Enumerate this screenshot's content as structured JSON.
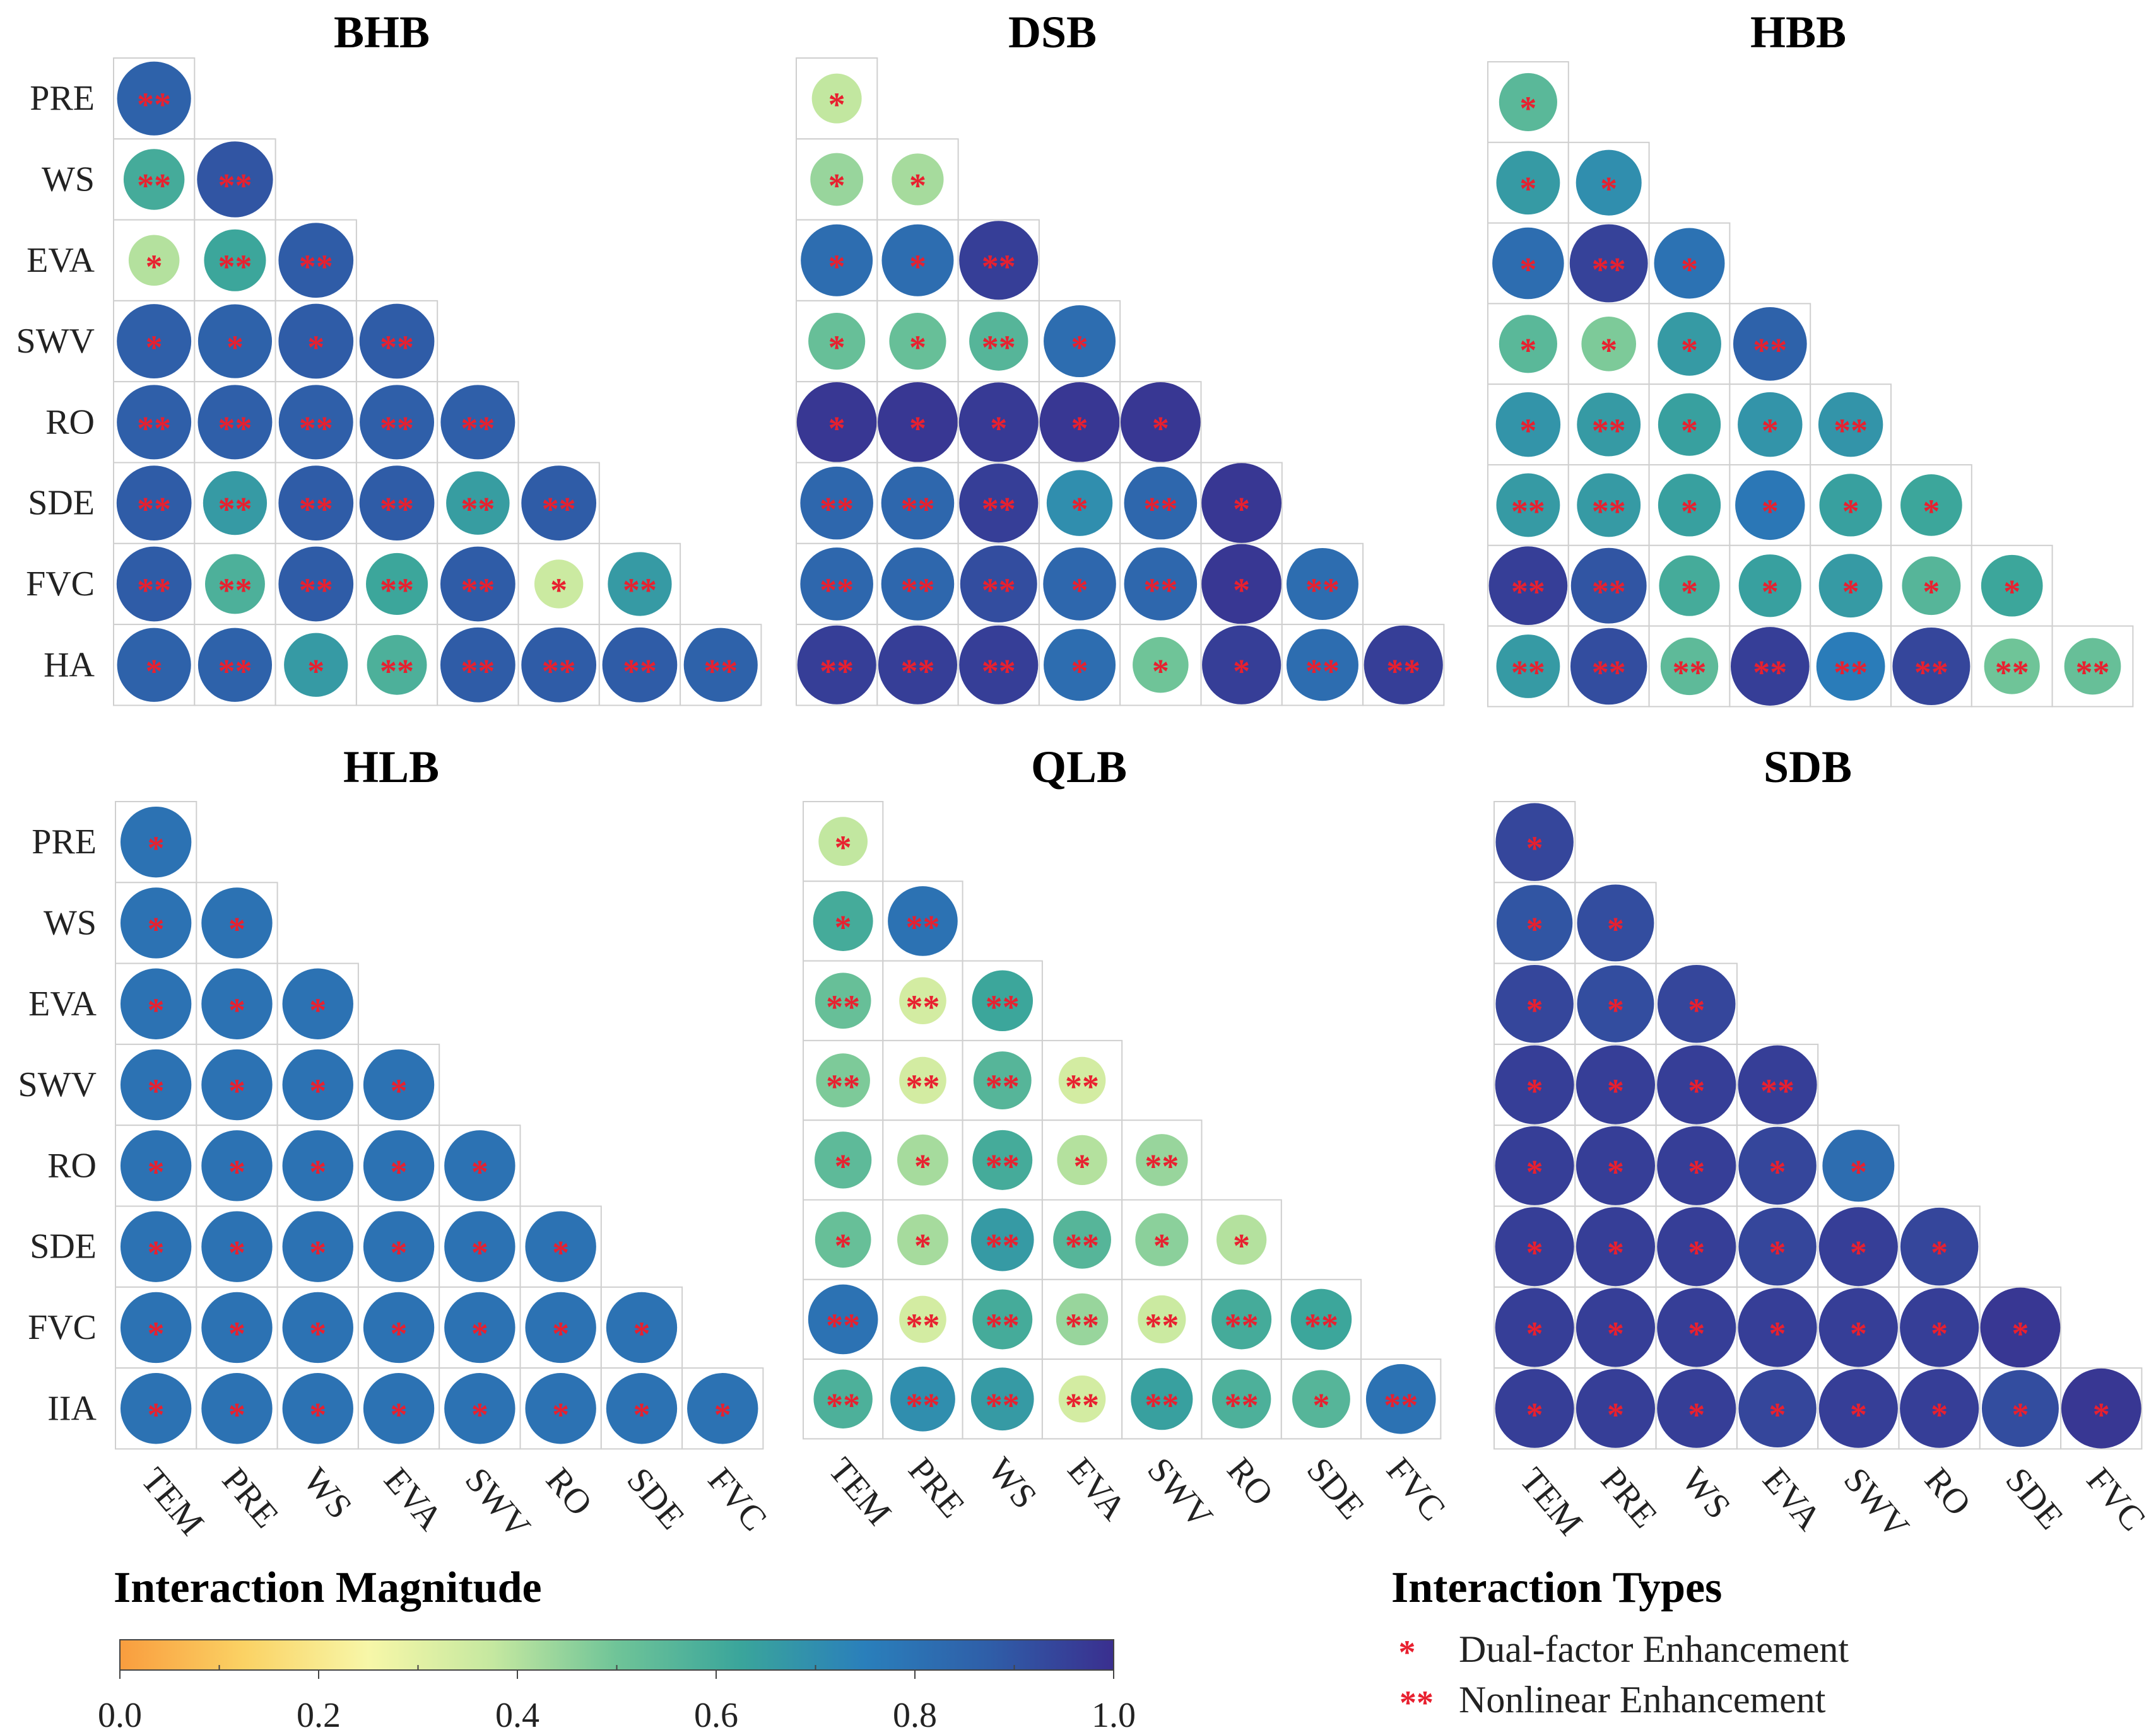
{
  "chart_data": {
    "type": "heatmap",
    "variant": "lower-triangle bubble matrix (6 panels)",
    "row_labels": [
      "PRE",
      "WS",
      "EVA",
      "SWV",
      "RO",
      "SDE",
      "FVC",
      "HA"
    ],
    "col_labels": [
      "TEM",
      "PRE",
      "WS",
      "EVA",
      "SWV",
      "RO",
      "SDE",
      "FVC"
    ],
    "row_labels_by_panel": {
      "HLB": [
        "PRE",
        "WS",
        "EVA",
        "SWV",
        "RO",
        "SDE",
        "FVC",
        "IIA"
      ]
    },
    "panels": [
      {
        "title": "BHB",
        "values": [
          [
            0.86
          ],
          [
            0.6,
            0.9
          ],
          [
            0.4,
            0.62,
            0.88
          ],
          [
            0.87,
            0.86,
            0.88,
            0.88
          ],
          [
            0.87,
            0.87,
            0.87,
            0.87,
            0.87
          ],
          [
            0.88,
            0.66,
            0.88,
            0.88,
            0.65,
            0.88
          ],
          [
            0.88,
            0.58,
            0.88,
            0.62,
            0.88,
            0.36,
            0.66
          ],
          [
            0.86,
            0.86,
            0.66,
            0.58,
            0.88,
            0.88,
            0.88,
            0.86
          ]
        ],
        "types": [
          [
            2
          ],
          [
            2,
            2
          ],
          [
            1,
            2,
            2
          ],
          [
            1,
            1,
            1,
            2
          ],
          [
            2,
            2,
            2,
            2,
            2
          ],
          [
            2,
            2,
            2,
            2,
            2,
            2
          ],
          [
            2,
            2,
            2,
            2,
            2,
            1,
            2
          ],
          [
            1,
            2,
            1,
            2,
            2,
            2,
            2,
            2
          ]
        ]
      },
      {
        "title": "DSB",
        "values": [
          [
            0.38
          ],
          [
            0.44,
            0.42
          ],
          [
            0.82,
            0.82,
            0.96
          ],
          [
            0.52,
            0.52,
            0.56,
            0.82
          ],
          [
            0.98,
            0.98,
            0.97,
            0.98,
            0.98
          ],
          [
            0.84,
            0.84,
            0.96,
            0.7,
            0.84,
            0.98
          ],
          [
            0.84,
            0.84,
            0.92,
            0.84,
            0.84,
            0.98,
            0.82
          ],
          [
            0.96,
            0.96,
            0.96,
            0.82,
            0.5,
            0.96,
            0.82,
            0.96
          ]
        ],
        "types": [
          [
            1
          ],
          [
            1,
            1
          ],
          [
            1,
            1,
            2
          ],
          [
            1,
            1,
            2,
            1
          ],
          [
            1,
            1,
            1,
            1,
            1
          ],
          [
            2,
            2,
            2,
            1,
            2,
            1
          ],
          [
            2,
            2,
            2,
            1,
            2,
            1,
            2
          ],
          [
            2,
            2,
            2,
            1,
            1,
            1,
            2,
            2
          ]
        ]
      },
      {
        "title": "HBB",
        "values": [
          [
            0.55
          ],
          [
            0.66,
            0.7
          ],
          [
            0.82,
            0.95,
            0.8
          ],
          [
            0.55,
            0.48,
            0.66,
            0.86
          ],
          [
            0.68,
            0.66,
            0.64,
            0.68,
            0.68
          ],
          [
            0.66,
            0.66,
            0.64,
            0.78,
            0.64,
            0.62
          ],
          [
            0.96,
            0.9,
            0.6,
            0.64,
            0.66,
            0.56,
            0.62
          ],
          [
            0.66,
            0.92,
            0.54,
            0.96,
            0.76,
            0.94,
            0.5,
            0.52
          ]
        ],
        "types": [
          [
            1
          ],
          [
            1,
            1
          ],
          [
            1,
            2,
            1
          ],
          [
            1,
            1,
            1,
            2
          ],
          [
            1,
            2,
            1,
            1,
            2
          ],
          [
            2,
            2,
            1,
            1,
            1,
            1
          ],
          [
            2,
            2,
            1,
            1,
            1,
            1,
            1
          ],
          [
            2,
            2,
            2,
            2,
            2,
            2,
            2,
            2
          ]
        ]
      },
      {
        "title": "HLB",
        "values": [
          [
            0.8
          ],
          [
            0.8,
            0.8
          ],
          [
            0.8,
            0.8,
            0.8
          ],
          [
            0.8,
            0.8,
            0.8,
            0.8
          ],
          [
            0.8,
            0.8,
            0.8,
            0.8,
            0.8
          ],
          [
            0.8,
            0.8,
            0.8,
            0.8,
            0.8,
            0.8
          ],
          [
            0.8,
            0.8,
            0.8,
            0.8,
            0.8,
            0.8,
            0.8
          ],
          [
            0.8,
            0.8,
            0.8,
            0.8,
            0.8,
            0.8,
            0.8,
            0.8
          ]
        ],
        "types": [
          [
            1
          ],
          [
            1,
            1
          ],
          [
            1,
            1,
            1
          ],
          [
            1,
            1,
            1,
            1
          ],
          [
            1,
            1,
            1,
            1,
            1
          ],
          [
            1,
            1,
            1,
            1,
            1,
            1
          ],
          [
            1,
            1,
            1,
            1,
            1,
            1,
            1
          ],
          [
            1,
            1,
            1,
            1,
            1,
            1,
            1,
            1
          ]
        ]
      },
      {
        "title": "QLB",
        "values": [
          [
            0.38
          ],
          [
            0.6,
            0.8
          ],
          [
            0.52,
            0.34,
            0.62
          ],
          [
            0.48,
            0.34,
            0.56,
            0.34
          ],
          [
            0.54,
            0.42,
            0.6,
            0.4,
            0.44
          ],
          [
            0.52,
            0.42,
            0.66,
            0.56,
            0.46,
            0.4
          ],
          [
            0.8,
            0.34,
            0.6,
            0.44,
            0.36,
            0.6,
            0.62
          ],
          [
            0.58,
            0.7,
            0.66,
            0.34,
            0.64,
            0.58,
            0.56,
            0.8
          ]
        ],
        "types": [
          [
            1
          ],
          [
            1,
            2
          ],
          [
            2,
            2,
            2
          ],
          [
            2,
            2,
            2,
            2
          ],
          [
            1,
            1,
            2,
            1,
            2
          ],
          [
            1,
            1,
            2,
            2,
            1,
            1
          ],
          [
            2,
            2,
            2,
            2,
            2,
            2,
            2
          ],
          [
            2,
            2,
            2,
            2,
            2,
            2,
            1,
            2
          ]
        ]
      },
      {
        "title": "SDB",
        "values": [
          [
            0.94
          ],
          [
            0.9,
            0.92
          ],
          [
            0.94,
            0.92,
            0.94
          ],
          [
            0.96,
            0.96,
            0.96,
            0.96
          ],
          [
            0.96,
            0.96,
            0.96,
            0.94,
            0.82
          ],
          [
            0.96,
            0.96,
            0.96,
            0.94,
            0.96,
            0.94
          ],
          [
            0.96,
            0.96,
            0.96,
            0.96,
            0.96,
            0.96,
            0.98
          ],
          [
            0.96,
            0.96,
            0.96,
            0.94,
            0.96,
            0.96,
            0.92,
            0.98
          ]
        ],
        "types": [
          [
            1
          ],
          [
            1,
            1
          ],
          [
            1,
            1,
            1
          ],
          [
            1,
            1,
            1,
            2
          ],
          [
            1,
            1,
            1,
            1,
            1
          ],
          [
            1,
            1,
            1,
            1,
            1,
            1
          ],
          [
            1,
            1,
            1,
            1,
            1,
            1,
            1
          ],
          [
            1,
            1,
            1,
            1,
            1,
            1,
            1,
            1
          ]
        ]
      }
    ],
    "colorbar": {
      "title": "Interaction Magnitude",
      "range": [
        0.0,
        1.0
      ],
      "ticks": [
        "0.0",
        "0.2",
        "0.4",
        "0.6",
        "0.8",
        "1.0"
      ],
      "colormap": [
        "#f99d3e",
        "#fbd264",
        "#f7f7a8",
        "#c5e8a0",
        "#6fc498",
        "#3aa59b",
        "#2a7fbb",
        "#2f5ea8",
        "#3a2f8f"
      ]
    },
    "interaction_types": {
      "title": "Interaction Types",
      "items": [
        {
          "symbol": "*",
          "label": "Dual-factor Enhancement"
        },
        {
          "symbol": "**",
          "label": "Nonlinear Enhancement"
        }
      ]
    }
  },
  "colors": {
    "marker": "#e8202f",
    "grid": "#cfcfcf"
  }
}
